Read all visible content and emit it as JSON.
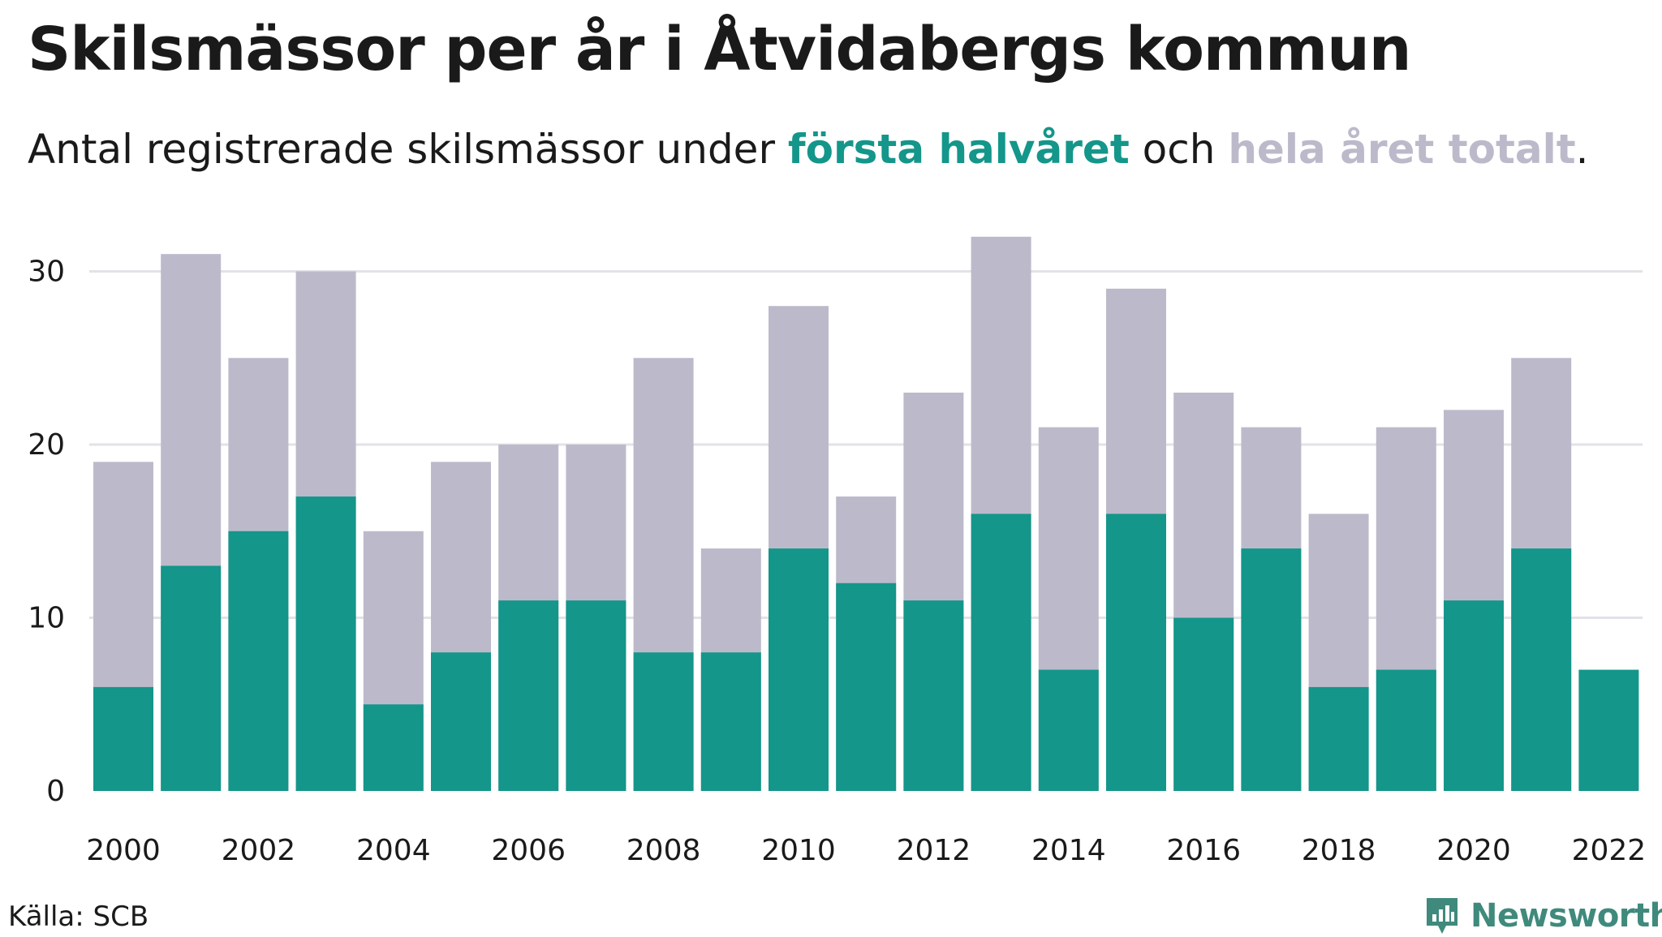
{
  "title": "Skilsmässor per år i Åtvidabergs kommun",
  "subtitle": {
    "prefix": "Antal registrerade skilsmässor under ",
    "highlight_first": "första halvåret",
    "middle": " och ",
    "highlight_total": "hela året totalt",
    "suffix": "."
  },
  "source": "Källa: SCB",
  "brand": {
    "name": "Newsworthy",
    "icon": "newsworthy-logo-icon"
  },
  "colors": {
    "first_half": "#14968a",
    "full_year": "#bcbaca",
    "grid": "#e2e2e8"
  },
  "chart_data": {
    "type": "bar",
    "categories": [
      2000,
      2001,
      2002,
      2003,
      2004,
      2005,
      2006,
      2007,
      2008,
      2009,
      2010,
      2011,
      2012,
      2013,
      2014,
      2015,
      2016,
      2017,
      2018,
      2019,
      2020,
      2021,
      2022
    ],
    "series": [
      {
        "name": "hela året totalt",
        "values": [
          19,
          31,
          25,
          30,
          15,
          19,
          20,
          20,
          25,
          14,
          28,
          17,
          23,
          32,
          21,
          29,
          23,
          21,
          16,
          21,
          22,
          25,
          null
        ]
      },
      {
        "name": "första halvåret",
        "values": [
          6,
          13,
          15,
          17,
          5,
          8,
          11,
          11,
          8,
          8,
          14,
          12,
          11,
          16,
          7,
          16,
          10,
          14,
          6,
          7,
          11,
          14,
          7
        ]
      }
    ],
    "x_tick_labels": [
      "2000",
      "2002",
      "2004",
      "2006",
      "2008",
      "2010",
      "2012",
      "2014",
      "2016",
      "2018",
      "2020",
      "2022"
    ],
    "y_ticks": [
      0,
      10,
      20,
      30
    ],
    "ylim": [
      0,
      32
    ],
    "grid": true,
    "overlaid": true
  }
}
